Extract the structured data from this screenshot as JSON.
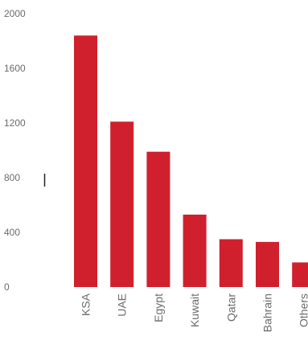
{
  "chart_data": {
    "type": "bar",
    "categories": [
      "KSA",
      "UAE",
      "Egypt",
      "Kuwait",
      "Qatar",
      "Bahrain",
      "Others"
    ],
    "values": [
      1840,
      1210,
      990,
      530,
      350,
      330,
      180
    ],
    "ylim": [
      0,
      2000
    ],
    "yticks": [
      0,
      400,
      800,
      1200,
      1600,
      2000
    ],
    "title": "",
    "xlabel": "",
    "ylabel": "",
    "grid": false,
    "legend": "none",
    "bar_color": "#d0202e",
    "text_color": "#6b6b6b"
  }
}
